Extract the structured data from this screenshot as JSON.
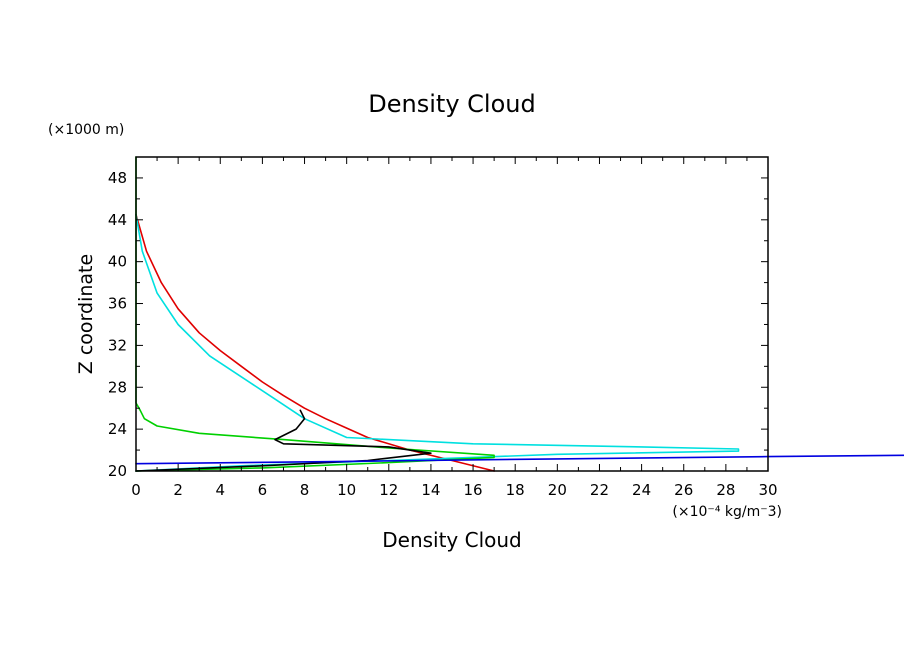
{
  "chart_data": {
    "type": "line",
    "title": "Density Cloud",
    "xlabel": "Density Cloud",
    "ylabel": "Z coordinate",
    "x_unit": "(×10⁻⁴ kg/m⁻3)",
    "y_unit": "(×1000 m)",
    "xlim": [
      0,
      30
    ],
    "ylim": [
      20,
      50
    ],
    "x_ticks": [
      0,
      2,
      4,
      6,
      8,
      10,
      12,
      14,
      16,
      18,
      20,
      22,
      24,
      26,
      28,
      30
    ],
    "y_ticks": [
      20,
      24,
      28,
      32,
      36,
      40,
      44,
      48
    ],
    "x_tick_labels": [
      "0",
      "2",
      "4",
      "6",
      "8",
      "10",
      "12",
      "14",
      "16",
      "18",
      "20",
      "22",
      "24",
      "26",
      "28",
      "30"
    ],
    "y_tick_labels": [
      "20",
      "24",
      "28",
      "32",
      "36",
      "40",
      "44",
      "48"
    ],
    "grid": false,
    "legend": "none",
    "series": [
      {
        "color": "#e00000",
        "x": [
          17.0,
          15.0,
          13.0,
          11.0,
          10.0,
          9.0,
          8.0,
          7.0,
          6.0,
          5.0,
          4.0,
          3.0,
          2.0,
          1.2,
          0.5,
          0.1,
          0.0
        ],
        "y": [
          20.0,
          21.0,
          22.0,
          23.2,
          24.1,
          25.0,
          26.0,
          27.2,
          28.5,
          30.0,
          31.5,
          33.2,
          35.5,
          38.0,
          41.0,
          43.8,
          44.5
        ]
      },
      {
        "color": "#00e0e0",
        "x": [
          0.0,
          5.0,
          12.0,
          20.0,
          28.6,
          28.6,
          24.0,
          16.0,
          10.0,
          8.0,
          6.5,
          5.0,
          3.5,
          2.0,
          1.0,
          0.3,
          0.0
        ],
        "y": [
          20.0,
          20.5,
          21.0,
          21.6,
          21.9,
          22.1,
          22.3,
          22.6,
          23.2,
          25.0,
          27.0,
          29.0,
          31.0,
          34.0,
          37.0,
          41.0,
          44.5
        ]
      },
      {
        "color": "#00d000",
        "x": [
          0.0,
          6.0,
          12.0,
          17.0,
          17.0,
          12.0,
          7.0,
          3.0,
          1.0,
          0.4,
          0.2,
          0.0,
          0.0,
          0.0
        ],
        "y": [
          20.0,
          20.3,
          20.8,
          21.3,
          21.5,
          22.2,
          23.0,
          23.6,
          24.3,
          25.0,
          25.8,
          26.5,
          40.0,
          50.0
        ]
      },
      {
        "color": "#000000",
        "x": [
          0.0,
          6.0,
          11.0,
          14.0,
          12.0,
          7.0,
          6.6,
          7.6,
          8.0,
          7.8
        ],
        "y": [
          20.0,
          20.5,
          21.0,
          21.7,
          22.3,
          22.6,
          23.0,
          24.0,
          25.0,
          25.8
        ]
      },
      {
        "color": "#0000e0",
        "x": [
          0.0,
          10.0,
          20.0,
          30.0,
          36.7
        ],
        "y": [
          20.7,
          20.92,
          21.16,
          21.38,
          21.5
        ]
      }
    ]
  }
}
